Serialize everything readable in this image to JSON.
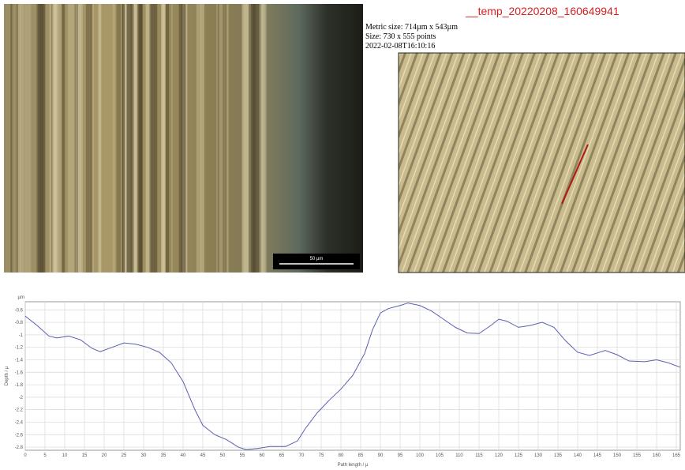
{
  "header": {
    "title": "__temp_20220208_160649941",
    "metric_size": "Metric size: 714µm x 543µm",
    "size": "Size: 730 x 555 points",
    "timestamp": "2022-02-08T16:10:16"
  },
  "scale_bar": "50 µm",
  "chart_data": {
    "type": "line",
    "unit_label": "µm",
    "xlabel": "Path length / µ",
    "ylabel": "Depth / µ",
    "color": "#5a5fb0",
    "grid": true,
    "x": [
      0,
      3,
      6,
      8,
      11,
      14,
      17,
      19,
      22,
      25,
      28,
      31,
      34,
      37,
      40,
      43,
      45,
      48,
      51,
      54,
      56,
      59,
      62,
      66,
      69,
      71,
      74,
      77,
      80,
      83,
      86,
      88,
      90,
      92,
      95,
      97,
      100,
      103,
      106,
      109,
      112,
      115,
      118,
      120,
      122,
      125,
      128,
      131,
      134,
      137,
      140,
      143,
      147,
      150,
      153,
      157,
      160,
      163,
      166
    ],
    "values": [
      -0.7,
      -0.85,
      -1.02,
      -1.05,
      -1.02,
      -1.08,
      -1.22,
      -1.27,
      -1.2,
      -1.13,
      -1.15,
      -1.2,
      -1.28,
      -1.45,
      -1.75,
      -2.2,
      -2.45,
      -2.6,
      -2.68,
      -2.8,
      -2.84,
      -2.82,
      -2.79,
      -2.79,
      -2.7,
      -2.5,
      -2.25,
      -2.05,
      -1.87,
      -1.65,
      -1.3,
      -0.92,
      -0.65,
      -0.58,
      -0.53,
      -0.49,
      -0.53,
      -0.62,
      -0.75,
      -0.88,
      -0.97,
      -0.98,
      -0.85,
      -0.75,
      -0.78,
      -0.88,
      -0.85,
      -0.8,
      -0.88,
      -1.1,
      -1.28,
      -1.33,
      -1.25,
      -1.32,
      -1.42,
      -1.43,
      -1.4,
      -1.45,
      -1.52
    ],
    "xlim": [
      0,
      166
    ],
    "ylim": [
      -2.85,
      -0.47
    ],
    "xticks": [
      0,
      5,
      10,
      15,
      20,
      25,
      30,
      35,
      40,
      45,
      50,
      55,
      60,
      65,
      70,
      75,
      80,
      85,
      90,
      95,
      100,
      105,
      110,
      115,
      120,
      125,
      130,
      135,
      140,
      145,
      150,
      155,
      160,
      165
    ],
    "yticks": [
      -0.6,
      -0.8,
      -1,
      -1.2,
      -1.4,
      -1.6,
      -1.8,
      -2,
      -2.2,
      -2.4,
      -2.6,
      -2.8
    ]
  }
}
